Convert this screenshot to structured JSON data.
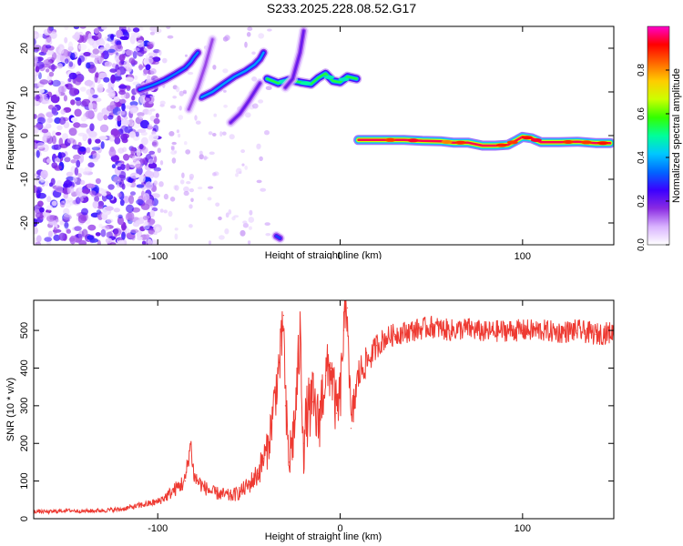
{
  "page_title": "S233.2025.228.08.52.G17",
  "colors": {
    "trace": "#ee3a32",
    "background": "#ffffff",
    "axis": "#000000"
  },
  "chart_data": [
    {
      "type": "heatmap",
      "title": "S233.2025.228.08.52.G17",
      "xlabel": "Height of straight line (km)",
      "ylabel": "Frequency (Hz)",
      "xlim": [
        -168,
        150
      ],
      "ylim": [
        -25,
        25
      ],
      "xticks": [
        -100,
        0,
        100
      ],
      "yticks": [
        -20,
        -10,
        0,
        10,
        20
      ],
      "colorbar": {
        "label": "Normalized spectral amplitude",
        "range": [
          0,
          1
        ],
        "ticks": [
          "0.0",
          "0.2",
          "0.4",
          "0.6",
          "0.8"
        ],
        "colormap": [
          "#ffffff",
          "#d9b3ff",
          "#8a2be2",
          "#3b00ff",
          "#0066ff",
          "#00c8ff",
          "#00ff99",
          "#33ff00",
          "#ccff00",
          "#ffcc00",
          "#ff6600",
          "#ff0000",
          "#ff00cc"
        ]
      },
      "noise_region_x": [
        -168,
        -108
      ],
      "tracks": [
        {
          "points": [
            [
              -110,
              10.5
            ],
            [
              -103,
              11.5
            ],
            [
              -96,
              12.8
            ],
            [
              -90,
              14.2
            ],
            [
              -85,
              15.5
            ],
            [
              -82,
              16.8
            ],
            [
              -80,
              18.0
            ],
            [
              -78,
              19.0
            ]
          ],
          "peak": 0.35
        },
        {
          "points": [
            [
              -76,
              8.8
            ],
            [
              -70,
              10.0
            ],
            [
              -64,
              11.8
            ],
            [
              -58,
              13.5
            ],
            [
              -52,
              14.8
            ],
            [
              -47,
              16.2
            ],
            [
              -44,
              17.5
            ],
            [
              -42,
              19.0
            ]
          ],
          "peak": 0.38
        },
        {
          "points": [
            [
              -40,
              13.0
            ],
            [
              -34,
              12.0
            ],
            [
              -28,
              12.8
            ],
            [
              -22,
              12.2
            ],
            [
              -16,
              11.8
            ],
            [
              -12,
              13.2
            ],
            [
              -8,
              14.2
            ],
            [
              -4,
              12.5
            ],
            [
              0,
              12.2
            ],
            [
              4,
              13.5
            ],
            [
              9,
              13.0
            ]
          ],
          "peak": 0.55
        },
        {
          "points": [
            [
              10,
              -1.0
            ],
            [
              20,
              -1.0
            ],
            [
              35,
              -1.0
            ],
            [
              45,
              -1.2
            ],
            [
              55,
              -1.3
            ],
            [
              62,
              -1.6
            ],
            [
              70,
              -1.6
            ],
            [
              78,
              -2.3
            ],
            [
              85,
              -2.3
            ],
            [
              92,
              -2.1
            ],
            [
              97,
              -1.0
            ],
            [
              100,
              -0.3
            ],
            [
              105,
              -0.6
            ],
            [
              110,
              -1.5
            ],
            [
              120,
              -1.5
            ],
            [
              130,
              -1.4
            ],
            [
              140,
              -1.7
            ],
            [
              148,
              -1.7
            ]
          ],
          "peak": 0.95
        },
        {
          "points": [
            [
              -60,
              3.0
            ],
            [
              -55,
              5.0
            ],
            [
              -50,
              8.0
            ],
            [
              -44,
              12.0
            ]
          ],
          "peak": 0.2
        },
        {
          "points": [
            [
              -30,
              11.0
            ],
            [
              -26,
              13.0
            ],
            [
              -22,
              19.0
            ],
            [
              -20,
              24.0
            ]
          ],
          "peak": 0.2
        },
        {
          "points": [
            [
              -83,
              6.0
            ],
            [
              -78,
              11.0
            ],
            [
              -74,
              16.0
            ],
            [
              -70,
              22.0
            ]
          ],
          "peak": 0.15
        },
        {
          "points": [
            [
              -35,
              -23.0
            ],
            [
              -33,
              -23.5
            ]
          ],
          "peak": 0.3
        }
      ]
    },
    {
      "type": "line",
      "xlabel": "Height of straight line (km)",
      "ylabel": "SNR (10 * v/v)",
      "xlim": [
        -168,
        150
      ],
      "ylim": [
        0,
        580
      ],
      "xticks": [
        -100,
        0,
        100
      ],
      "yticks": [
        0,
        100,
        200,
        300,
        400,
        500
      ],
      "series": [
        {
          "color": "#ee3a32",
          "x": [
            -168,
            -160,
            -150,
            -140,
            -130,
            -120,
            -110,
            -100,
            -95,
            -90,
            -85,
            -82,
            -80,
            -75,
            -70,
            -65,
            -60,
            -55,
            -50,
            -45,
            -42,
            -40,
            -38,
            -35,
            -32,
            -31,
            -30,
            -28,
            -25,
            -22,
            -20,
            -18,
            -15,
            -12,
            -10,
            -8,
            -5,
            -2,
            0,
            2,
            4,
            6,
            8,
            10,
            12,
            15,
            18,
            20,
            25,
            30,
            40,
            50,
            60,
            70,
            80,
            90,
            100,
            110,
            120,
            130,
            140,
            150
          ],
          "y": [
            20,
            18,
            22,
            20,
            22,
            25,
            35,
            45,
            60,
            80,
            100,
            200,
            110,
            85,
            70,
            65,
            60,
            70,
            90,
            120,
            160,
            180,
            240,
            350,
            460,
            540,
            300,
            150,
            250,
            480,
            200,
            280,
            310,
            250,
            320,
            380,
            400,
            280,
            320,
            500,
            560,
            240,
            320,
            380,
            400,
            420,
            440,
            460,
            480,
            490,
            500,
            510,
            500,
            505,
            495,
            500,
            500,
            500,
            495,
            500,
            490,
            495
          ],
          "jitter": [
            5,
            5,
            5,
            5,
            6,
            6,
            8,
            10,
            15,
            20,
            25,
            30,
            25,
            20,
            18,
            18,
            18,
            20,
            25,
            35,
            45,
            50,
            60,
            70,
            80,
            60,
            80,
            80,
            80,
            90,
            90,
            90,
            90,
            90,
            90,
            80,
            80,
            80,
            80,
            70,
            60,
            60,
            55,
            50,
            45,
            40,
            35,
            35,
            30,
            30,
            30,
            30,
            30,
            30,
            30,
            30,
            30,
            30,
            30,
            30,
            30,
            30
          ]
        }
      ]
    }
  ]
}
